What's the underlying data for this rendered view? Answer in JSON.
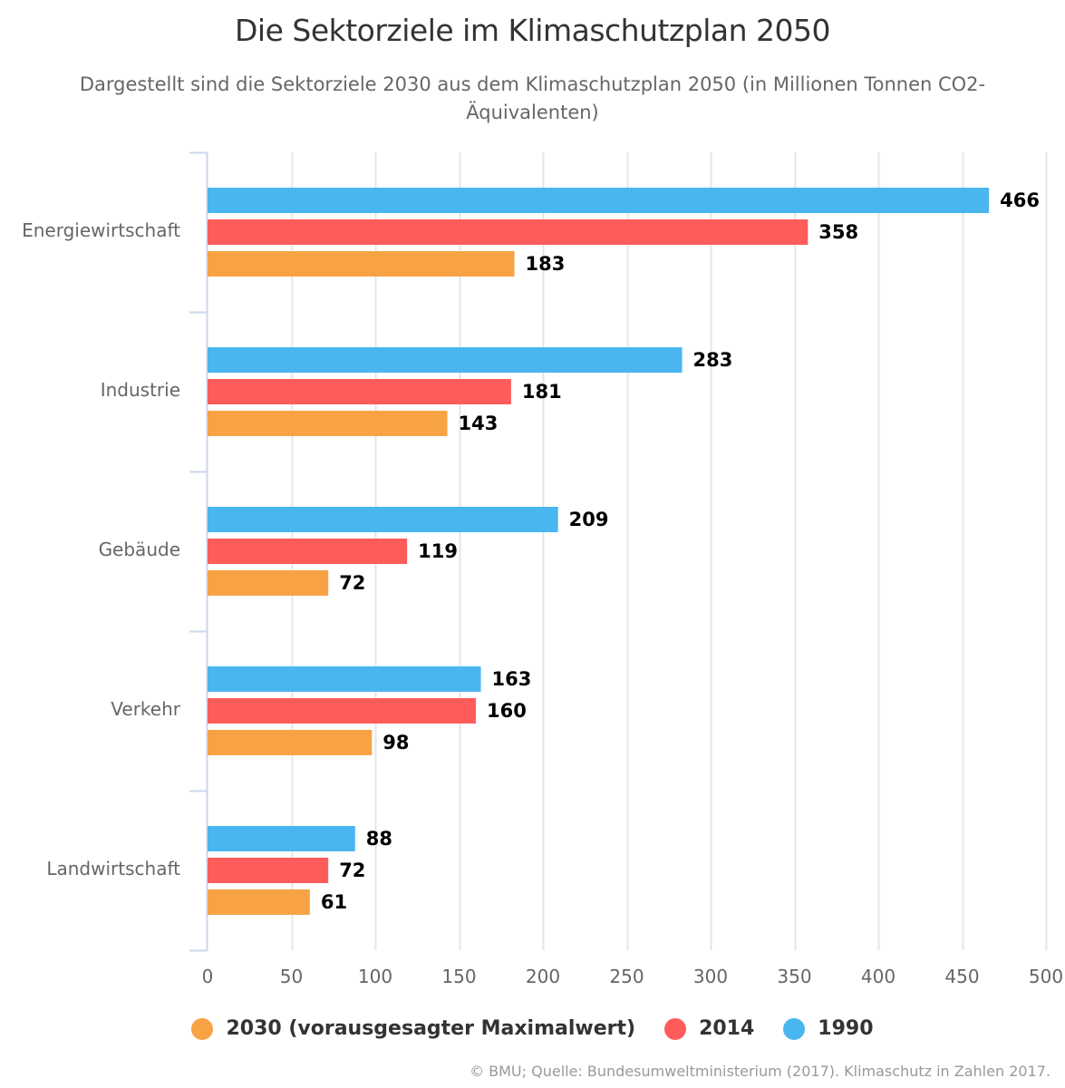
{
  "title": "Die Sektorziele im Klimaschutzplan 2050",
  "subtitle": "Dargestellt sind die Sektorziele 2030 aus dem Klimaschutzplan 2050 (in Millionen Tonnen CO2-Äquivalenten)",
  "credits": "© BMU; Quelle: Bundesumweltministerium (2017). Klimaschutz in Zahlen 2017.",
  "legend": [
    {
      "label": "2030 (vorausgesagter Maximalwert)",
      "color": "#f7a345",
      "icon": "circle-marker"
    },
    {
      "label": "2014",
      "color": "#fe5c5a",
      "icon": "circle-marker"
    },
    {
      "label": "1990",
      "color": "#49b6f0",
      "icon": "circle-marker"
    }
  ],
  "chart_data": {
    "type": "bar",
    "orientation": "horizontal",
    "title": "Die Sektorziele im Klimaschutzplan 2050",
    "subtitle": "Dargestellt sind die Sektorziele 2030 aus dem Klimaschutzplan 2050 (in Millionen Tonnen CO2-Äquivalenten)",
    "xlabel": "",
    "ylabel": "",
    "categories": [
      "Energiewirtschaft",
      "Industrie",
      "Gebäude",
      "Verkehr",
      "Landwirtschaft"
    ],
    "series": [
      {
        "name": "1990",
        "color": "#49b6f0",
        "values": [
          466,
          283,
          209,
          163,
          88
        ]
      },
      {
        "name": "2014",
        "color": "#fe5c5a",
        "values": [
          358,
          181,
          119,
          160,
          72
        ]
      },
      {
        "name": "2030 (vorausgesagter Maximalwert)",
        "color": "#f7a345",
        "values": [
          183,
          143,
          72,
          98,
          61
        ]
      }
    ],
    "xlim": [
      0,
      500
    ],
    "xticks": [
      0,
      50,
      100,
      150,
      200,
      250,
      300,
      350,
      400,
      450,
      500
    ],
    "grid": true,
    "data_labels": true,
    "legend_position": "bottom",
    "legend_order": [
      "2030 (vorausgesagter Maximalwert)",
      "2014",
      "1990"
    ]
  }
}
